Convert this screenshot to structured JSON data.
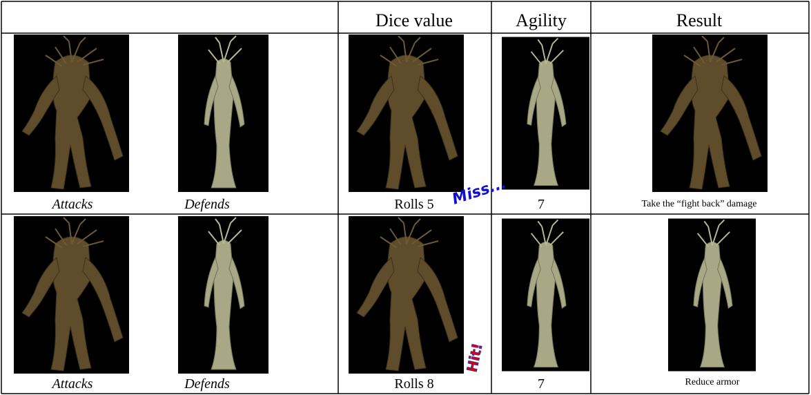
{
  "table": {
    "header": [
      "Dice value",
      "Agility",
      "Result"
    ],
    "rows": [
      {
        "attacker": "Attacks",
        "defender": "Defends",
        "dice": "Rolls 5",
        "outcome": "Miss...",
        "agility": 7,
        "result": "Take the “fight back” damage"
      },
      {
        "attacker": "Attacks",
        "defender": "Defends",
        "dice": "Rolls 8",
        "outcome": "Hit!",
        "agility": 7,
        "result": "Reduce armor"
      }
    ]
  }
}
